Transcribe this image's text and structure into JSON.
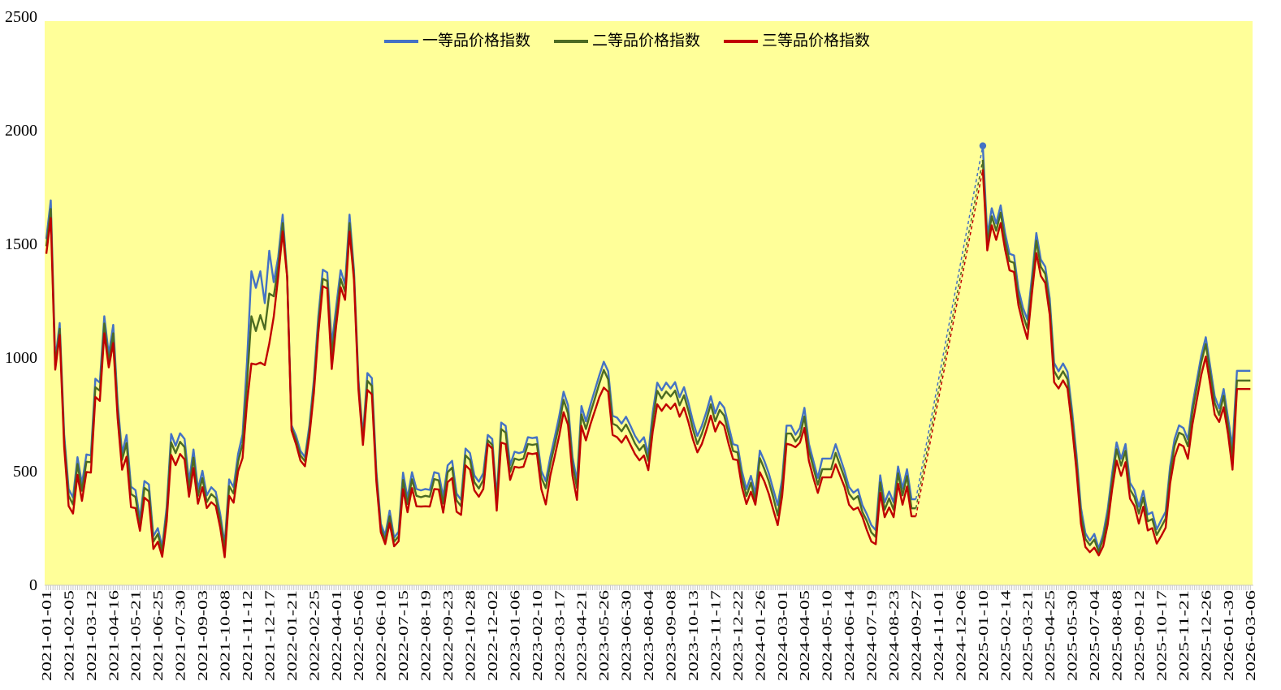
{
  "chart_data": {
    "type": "line",
    "title": "",
    "plot_bg_color": "#FFFF99",
    "page_bg_color": "#FFFFFF",
    "legend_position": "top-center",
    "grid": "off",
    "x_frequency": "weekly",
    "x_start_date": "2021-01-01",
    "x_end_date": "2026-03-06",
    "ylim": [
      0,
      2500
    ],
    "y_ticks": [
      0,
      500,
      1000,
      1500,
      2000,
      2500
    ],
    "x_tick_labels": [
      "2021-01-01",
      "2021-02-05",
      "2021-03-12",
      "2021-04-16",
      "2021-05-21",
      "2021-06-25",
      "2021-07-30",
      "2021-09-03",
      "2021-10-08",
      "2021-11-12",
      "2021-12-17",
      "2022-01-21",
      "2022-02-25",
      "2022-04-01",
      "2022-05-06",
      "2022-06-10",
      "2022-07-15",
      "2022-08-19",
      "2022-09-23",
      "2022-10-28",
      "2022-12-02",
      "2023-01-06",
      "2023-02-10",
      "2023-03-17",
      "2023-04-21",
      "2023-05-26",
      "2023-06-30",
      "2023-08-04",
      "2023-09-08",
      "2023-10-13",
      "2023-11-17",
      "2023-12-22",
      "2024-01-26",
      "2024-03-01",
      "2024-04-05",
      "2024-05-10",
      "2024-06-14",
      "2024-07-19",
      "2024-08-23",
      "2024-09-27",
      "2024-11-01",
      "2024-12-06",
      "2025-01-10",
      "2025-02-14",
      "2025-03-21",
      "2025-04-25",
      "2025-05-30",
      "2025-07-04",
      "2025-08-08",
      "2025-09-12",
      "2025-10-17",
      "2025-11-21",
      "2025-12-26",
      "2026-01-30",
      "2026-03-06"
    ],
    "missing_data_gap": {
      "from_index": 195,
      "to_index": 210,
      "style": "dashed-straight-interpolation"
    },
    "series": [
      {
        "name": "一等品价格指数",
        "color": "#4472C4",
        "marker_at_index": 210,
        "marker_value": 1930,
        "values": [
          1520,
          1690,
          985,
          1150,
          660,
          420,
          382,
          560,
          442,
          572,
          568,
          905,
          888,
          1180,
          1012,
          1142,
          800,
          578,
          658,
          430,
          415,
          288,
          455,
          440,
          212,
          248,
          165,
          340,
          662,
          610,
          665,
          640,
          452,
          594,
          420,
          500,
          392,
          428,
          408,
          310,
          177,
          462,
          428,
          574,
          660,
          980,
          1378,
          1305,
          1378,
          1238,
          1468,
          1330,
          1440,
          1627,
          1360,
          700,
          655,
          588,
          560,
          700,
          900,
          1180,
          1385,
          1372,
          1055,
          1222,
          1383,
          1320,
          1627,
          1380,
          900,
          652,
          930,
          908,
          500,
          268,
          216,
          325,
          206,
          232,
          492,
          380,
          494,
          420,
          414,
          420,
          416,
          494,
          488,
          386,
          524,
          544,
          400,
          372,
          598,
          578,
          480,
          452,
          490,
          658,
          640,
          380,
          712,
          698,
          525,
          584,
          578,
          584,
          648,
          644,
          648,
          500,
          455,
          560,
          648,
          740,
          848,
          788,
          560,
          455,
          785,
          718,
          790,
          855,
          920,
          980,
          938,
          742,
          734,
          708,
          738,
          698,
          654,
          624,
          648,
          574,
          758,
          888,
          854,
          888,
          862,
          890,
          824,
          868,
          798,
          718,
          653,
          698,
          758,
          828,
          753,
          803,
          778,
          698,
          617,
          611,
          498,
          419,
          478,
          399,
          589,
          544,
          489,
          419,
          349,
          464,
          699,
          699,
          659,
          689,
          777,
          619,
          544,
          469,
          554,
          554,
          554,
          617,
          559,
          499,
          429,
          404,
          419,
          349,
          309,
          261,
          239,
          480,
          361,
          409,
          361,
          519,
          422,
          507,
          375,
          375,
          null,
          null,
          null,
          null,
          null,
          null,
          null,
          null,
          null,
          null,
          null,
          null,
          null,
          null,
          1930,
          1535,
          1655,
          1588,
          1668,
          1545,
          1455,
          1448,
          1300,
          1218,
          1165,
          1350,
          1546,
          1430,
          1398,
          1258,
          975,
          938,
          972,
          935,
          768,
          572,
          338,
          225,
          193,
          222,
          158,
          222,
          330,
          488,
          625,
          553,
          618,
          448,
          415,
          342,
          412,
          308,
          318,
          243,
          283,
          320,
          520,
          640,
          700,
          688,
          638,
          788,
          898,
          1008,
          1088,
          958,
          828,
          775,
          860,
          730,
          605,
          940,
          940,
          940,
          940
        ]
      },
      {
        "name": "二等品价格指数",
        "color": "#4C6B22",
        "values": [
          1488,
          1652,
          965,
          1125,
          635,
          390,
          352,
          530,
          412,
          540,
          538,
          868,
          852,
          1148,
          978,
          1105,
          768,
          548,
          622,
          398,
          385,
          258,
          425,
          410,
          188,
          222,
          148,
          315,
          625,
          578,
          628,
          604,
          420,
          558,
          390,
          468,
          362,
          398,
          380,
          285,
          156,
          432,
          400,
          540,
          618,
          885,
          1180,
          1115,
          1185,
          1122,
          1280,
          1268,
          1400,
          1590,
          1356,
          690,
          638,
          568,
          542,
          678,
          872,
          1148,
          1345,
          1335,
          1008,
          1182,
          1345,
          1288,
          1590,
          1360,
          878,
          633,
          896,
          874,
          478,
          249,
          196,
          300,
          188,
          212,
          460,
          354,
          463,
          390,
          384,
          390,
          386,
          464,
          458,
          356,
          494,
          514,
          370,
          344,
          568,
          548,
          450,
          422,
          460,
          634,
          614,
          355,
          684,
          668,
          495,
          554,
          548,
          554,
          618,
          614,
          618,
          470,
          424,
          528,
          614,
          704,
          812,
          752,
          528,
          424,
          748,
          684,
          754,
          818,
          884,
          944,
          902,
          708,
          698,
          674,
          704,
          664,
          620,
          590,
          614,
          544,
          724,
          852,
          818,
          849,
          827,
          853,
          788,
          832,
          763,
          683,
          618,
          663,
          723,
          793,
          718,
          768,
          743,
          663,
          587,
          581,
          468,
          389,
          448,
          369,
          556,
          509,
          454,
          384,
          304,
          434,
          664,
          664,
          629,
          654,
          739,
          589,
          514,
          439,
          507,
          507,
          507,
          579,
          524,
          469,
          399,
          374,
          389,
          319,
          279,
          229,
          209,
          449,
          329,
          379,
          329,
          489,
          392,
          477,
          335,
          335,
          null,
          null,
          null,
          null,
          null,
          null,
          null,
          null,
          null,
          null,
          null,
          null,
          null,
          null,
          1868,
          1500,
          1620,
          1556,
          1636,
          1512,
          1422,
          1415,
          1268,
          1186,
          1125,
          1318,
          1512,
          1398,
          1366,
          1226,
          940,
          904,
          938,
          902,
          736,
          542,
          308,
          200,
          173,
          198,
          143,
          202,
          303,
          458,
          595,
          523,
          588,
          418,
          385,
          312,
          382,
          278,
          288,
          218,
          253,
          290,
          490,
          610,
          668,
          658,
          608,
          758,
          868,
          978,
          1058,
          928,
          798,
          745,
          830,
          700,
          560,
          897,
          897,
          897,
          897
        ]
      },
      {
        "name": "三等品价格指数",
        "color": "#C00000",
        "values": [
          1455,
          1612,
          945,
          1098,
          605,
          345,
          312,
          482,
          368,
          495,
          492,
          825,
          808,
          1105,
          955,
          1062,
          732,
          505,
          562,
          340,
          336,
          236,
          382,
          365,
          156,
          188,
          122,
          278,
          570,
          525,
          574,
          550,
          386,
          512,
          355,
          428,
          336,
          362,
          345,
          250,
          120,
          390,
          360,
          498,
          556,
          800,
          972,
          968,
          976,
          965,
          1060,
          1178,
          1355,
          1553,
          1352,
          678,
          618,
          545,
          520,
          652,
          842,
          1108,
          1312,
          1302,
          948,
          1140,
          1308,
          1252,
          1552,
          1338,
          856,
          614,
          856,
          836,
          455,
          230,
          178,
          270,
          168,
          190,
          420,
          318,
          424,
          344,
          343,
          344,
          343,
          420,
          418,
          316,
          450,
          468,
          320,
          306,
          524,
          505,
          414,
          386,
          420,
          618,
          598,
          325,
          624,
          618,
          460,
          518,
          514,
          518,
          578,
          574,
          578,
          420,
          352,
          478,
          564,
          654,
          758,
          702,
          478,
          372,
          698,
          634,
          704,
          764,
          824,
          866,
          848,
          658,
          648,
          624,
          654,
          614,
          574,
          546,
          568,
          503,
          674,
          793,
          764,
          793,
          772,
          796,
          738,
          778,
          713,
          638,
          581,
          618,
          678,
          743,
          673,
          718,
          698,
          618,
          551,
          547,
          428,
          354,
          408,
          351,
          494,
          454,
          399,
          329,
          261,
          389,
          619,
          614,
          604,
          624,
          689,
          544,
          469,
          403,
          471,
          471,
          471,
          529,
          479,
          429,
          351,
          329,
          339,
          297,
          239,
          189,
          177,
          403,
          296,
          339,
          296,
          443,
          351,
          431,
          300,
          300,
          null,
          null,
          null,
          null,
          null,
          null,
          null,
          null,
          null,
          null,
          null,
          null,
          null,
          null,
          1826,
          1470,
          1580,
          1516,
          1590,
          1472,
          1382,
          1375,
          1228,
          1146,
          1080,
          1278,
          1458,
          1358,
          1326,
          1186,
          890,
          862,
          898,
          862,
          696,
          502,
          268,
          165,
          142,
          162,
          128,
          168,
          263,
          418,
          545,
          478,
          538,
          378,
          345,
          268,
          342,
          238,
          248,
          180,
          213,
          250,
          445,
          560,
          618,
          608,
          553,
          703,
          813,
          923,
          1003,
          878,
          748,
          715,
          780,
          660,
          505,
          860,
          860,
          860,
          860
        ]
      }
    ],
    "axis_tick_color": "#C6C6C6",
    "axis_line_color": "#C9C9C9",
    "text_color": "#000000"
  }
}
